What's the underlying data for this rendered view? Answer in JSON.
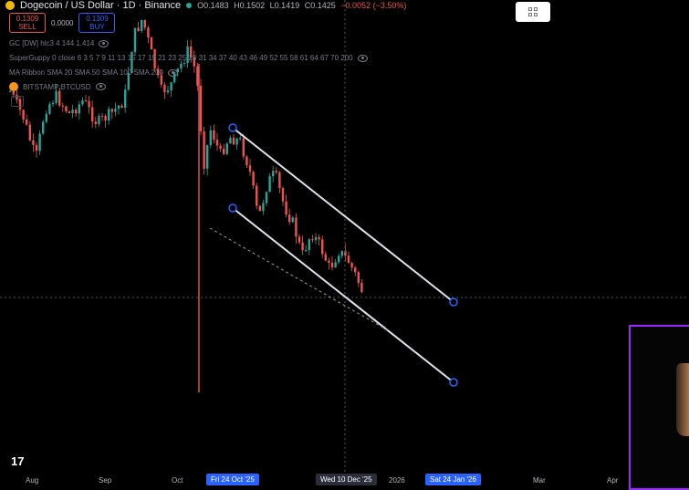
{
  "header": {
    "title": "Dogecoin / US Dollar · 1D · Binance",
    "open": "O0.1483",
    "high": "H0.1502",
    "low": "L0.1419",
    "close": "C0.1425",
    "change": "−0.0052 (−3.50%)"
  },
  "trade": {
    "sell_price": "0.1309",
    "sell_label": "SELL",
    "spread": "0.0000",
    "buy_price": "0.1309",
    "buy_label": "BUY"
  },
  "indicators": [
    "GC [DW] hlc3 4 144 1.414",
    "SuperGuppy 0 close 6 3 5 7 9 11 13 15 17 19 21 23 25 28 31 34 37 40 43 46 49 52 55 58 61 64 67 70 200",
    "MA Ribbon SMA 20 SMA 50 SMA 100 SMA 200",
    "BITSTAMP:BTCUSD"
  ],
  "xaxis": {
    "labels": [
      "Aug",
      "Sep",
      "Oct",
      "2026",
      "Mar",
      "Apr"
    ],
    "highlight_start": "Fri 24 Oct '25",
    "crosshair": "Wed 10 Dec '25",
    "highlight_end": "Sat 24 Jan '26"
  },
  "colors": {
    "up": "#26a69a",
    "down": "#ef5350",
    "trendline": "#d1d4dc",
    "anchor": "#2962ff",
    "highlight": "#2962ff",
    "webcam_border": "#9c27ff"
  },
  "icons": [
    "coin-icon",
    "market-open-dot",
    "eye-icon",
    "bitcoin-icon",
    "collapse-icon",
    "layout-grid-icon",
    "tradingview-logo"
  ]
}
